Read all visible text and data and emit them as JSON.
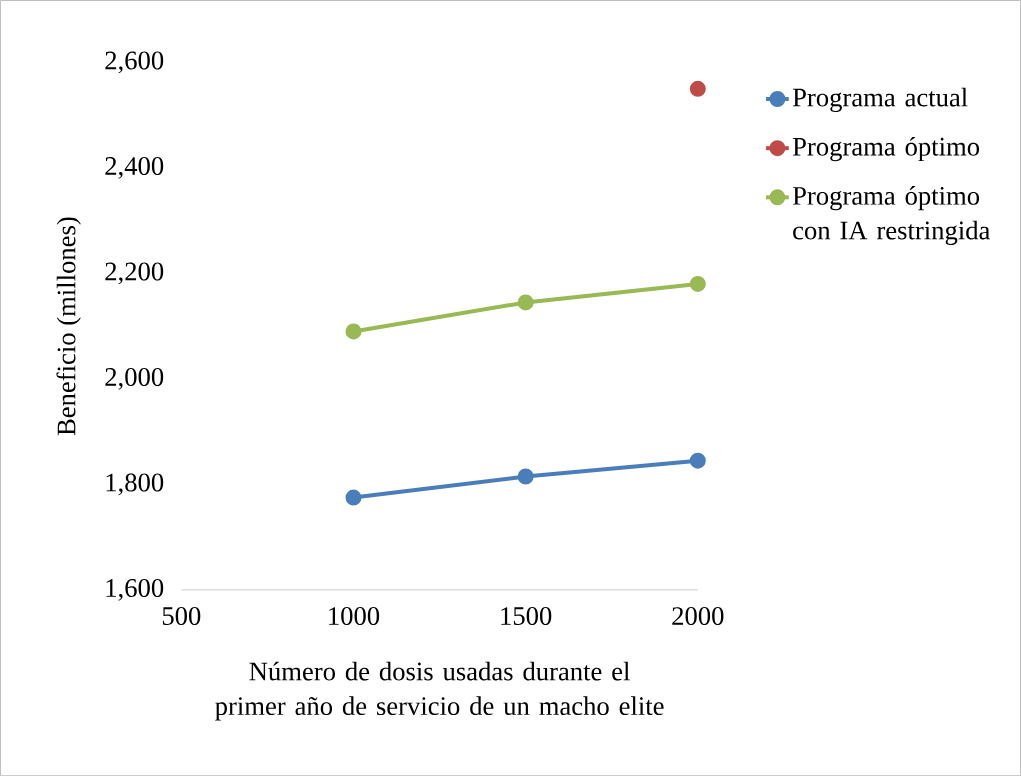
{
  "chart_data": {
    "type": "line",
    "xlabel": "Número de dosis usadas durante el primer año de servicio de un macho elite",
    "ylabel": "Beneficio (millones)",
    "x": [
      1000,
      1500,
      2000
    ],
    "series": [
      {
        "name": "Programa actual",
        "color": "#4a7ebb",
        "values": [
          1775,
          1815,
          1845
        ]
      },
      {
        "name": "Programa óptimo",
        "color": "#be4b48",
        "values": [
          null,
          null,
          2550
        ]
      },
      {
        "name": "Programa óptimo con IA restringida",
        "color": "#98b954",
        "values": [
          2090,
          2145,
          2180
        ]
      }
    ],
    "xlim": [
      500,
      2000
    ],
    "xticks": [
      500,
      1000,
      1500,
      2000
    ],
    "ylim": [
      1600,
      2600
    ],
    "yticks": [
      {
        "value": 1600,
        "label": "1,600"
      },
      {
        "value": 1800,
        "label": "1,800"
      },
      {
        "value": 2000,
        "label": "2,000"
      },
      {
        "value": 2200,
        "label": "2,200"
      },
      {
        "value": 2400,
        "label": "2,400"
      },
      {
        "value": 2600,
        "label": "2,600"
      }
    ],
    "legend": "right",
    "marker": "circle",
    "line_style": "solid",
    "grid": false
  }
}
